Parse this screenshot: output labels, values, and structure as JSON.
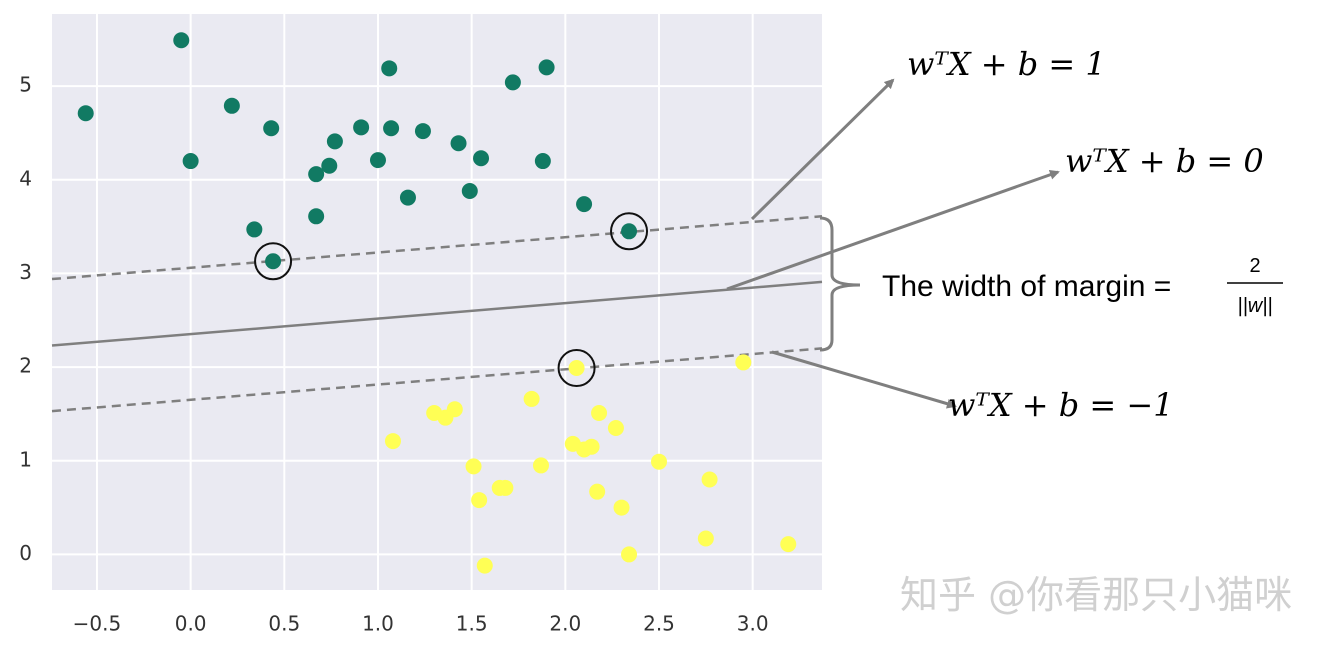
{
  "chart_data": {
    "type": "scatter",
    "xlim": [
      -0.74,
      3.37
    ],
    "ylim": [
      -0.38,
      5.77
    ],
    "xticks": [
      {
        "value": -0.5,
        "label": "−0.5"
      },
      {
        "value": 0,
        "label": "0.0"
      },
      0.5,
      {
        "value": 1,
        "label": "1.0"
      },
      1.5,
      {
        "value": 2,
        "label": "2.0"
      },
      2.5,
      {
        "value": 3,
        "label": "3.0"
      }
    ],
    "yticks": [
      0,
      1,
      2,
      3,
      4,
      5
    ],
    "grid": true,
    "series": [
      {
        "color": "#117a63",
        "x": [
          -0.56,
          -0.05,
          0.0,
          0.22,
          0.43,
          0.34,
          0.44,
          0.67,
          0.74,
          0.77,
          0.67,
          0.91,
          1.0,
          1.06,
          1.07,
          1.16,
          1.24,
          1.43,
          1.55,
          1.49,
          1.72,
          1.9,
          1.88,
          2.1,
          2.34
        ],
        "y": [
          4.71,
          5.49,
          4.2,
          4.79,
          4.55,
          3.47,
          3.13,
          4.06,
          4.15,
          4.41,
          3.61,
          4.56,
          4.21,
          5.19,
          4.55,
          3.81,
          4.52,
          4.39,
          4.23,
          3.88,
          5.04,
          5.2,
          4.2,
          3.74,
          3.45
        ]
      },
      {
        "color": "#ffff55",
        "x": [
          2.95,
          2.06,
          1.08,
          1.3,
          1.36,
          1.41,
          1.82,
          2.18,
          2.27,
          2.04,
          2.1,
          2.14,
          1.51,
          1.87,
          2.5,
          2.77,
          1.65,
          1.68,
          2.17,
          1.54,
          2.3,
          2.75,
          3.19,
          2.34,
          1.57
        ],
        "y": [
          2.05,
          1.99,
          1.21,
          1.51,
          1.46,
          1.55,
          1.66,
          1.51,
          1.35,
          1.18,
          1.12,
          1.15,
          0.94,
          0.95,
          0.99,
          0.8,
          0.71,
          0.71,
          0.67,
          0.58,
          0.5,
          0.17,
          0.11,
          0.0,
          -0.12
        ]
      }
    ],
    "support_vectors": {
      "x": [
        0.44,
        2.34,
        2.06
      ],
      "y": [
        3.13,
        3.45,
        1.99
      ]
    },
    "lines": [
      {
        "style": "solid",
        "x": [
          -0.74,
          3.37
        ],
        "y": [
          2.23,
          2.91
        ]
      },
      {
        "style": "dashed",
        "x": [
          -0.74,
          3.37
        ],
        "y": [
          2.94,
          3.61
        ]
      },
      {
        "style": "dashed",
        "x": [
          -0.74,
          3.37
        ],
        "y": [
          1.53,
          2.2
        ]
      }
    ],
    "annotations": [
      {
        "text": "wᵀX + b = 1"
      },
      {
        "text": "wᵀX + b = 0"
      },
      {
        "text": "wᵀX + b = −1"
      },
      {
        "text": "The width of margin ="
      },
      {
        "text": "2"
      },
      {
        "text": "||w||"
      }
    ],
    "watermark": "知乎 @你看那只小猫咪"
  }
}
